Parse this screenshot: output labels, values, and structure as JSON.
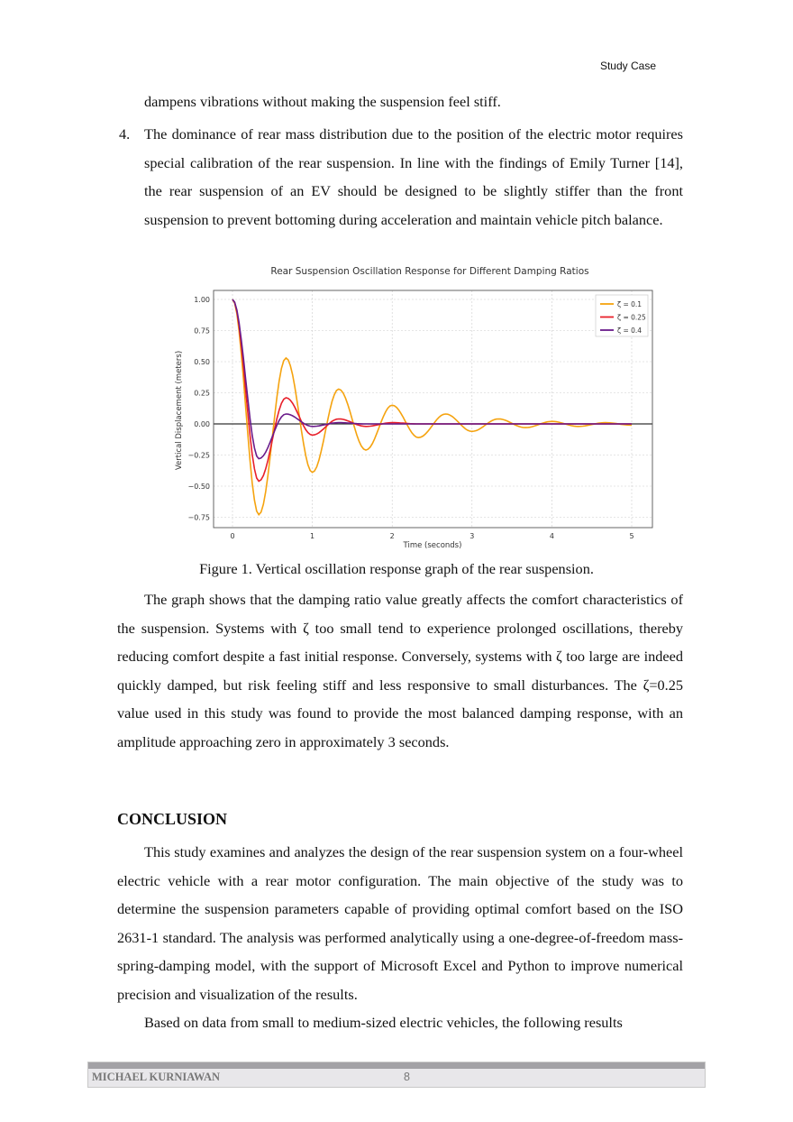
{
  "header": {
    "running_title": "Study Case"
  },
  "body": {
    "para_continued": "dampens vibrations without making the suspension feel stiff.",
    "list_item_4": {
      "number": "4.",
      "text": "The dominance of rear mass distribution due to the position of the electric motor requires special calibration of the rear suspension. In line with the findings of Emily Turner [14], the rear suspension of an EV should be designed to be slightly stiffer than the front suspension to prevent bottoming during acceleration and maintain vehicle pitch balance."
    },
    "figure_caption": "Figure 1. Vertical oscillation response graph of the rear suspension.",
    "para_graph_discussion": "The graph shows that the damping ratio value greatly affects the comfort characteristics of the suspension. Systems with ζ too small tend to experience prolonged oscillations, thereby reducing comfort despite a fast initial response. Conversely, systems with ζ too large are indeed quickly damped, but risk feeling stiff and less responsive to small disturbances. The ζ=0.25 value used in this study was found to provide the most balanced damping response, with an amplitude approaching zero in approximately 3 seconds.",
    "conclusion_heading": "CONCLUSION",
    "conclusion_para_1": "This study examines and analyzes the design of the rear suspension system on a four-wheel electric vehicle with a rear motor configuration. The main objective of the study was to determine the suspension parameters capable of providing optimal comfort based on the ISO 2631-1 standard. The analysis was performed analytically using a one-degree-of-freedom mass-spring-damping model, with the support of Microsoft Excel and Python to improve numerical precision and visualization of the results.",
    "conclusion_para_2": "Based on data from small to medium-sized electric vehicles, the following results"
  },
  "footer": {
    "author": "MICHAEL KURNIAWAN",
    "page_number": "8"
  },
  "chart_data": {
    "type": "line",
    "title": "Rear Suspension Oscillation Response for Different Damping Ratios",
    "xlabel": "Time (seconds)",
    "ylabel": "Vertical Displacement (meters)",
    "xlim": [
      -0.25,
      5.25
    ],
    "ylim": [
      -0.82,
      1.08
    ],
    "xticks": [
      "0",
      "1",
      "2",
      "3",
      "4",
      "5"
    ],
    "yticks": [
      "1.00",
      "0.75",
      "0.50",
      "0.25",
      "0.00",
      "−0.25",
      "−0.50",
      "−0.75"
    ],
    "grid": true,
    "legend_position": "top-right",
    "zero_line": true,
    "x": [
      0,
      0.33,
      0.67,
      1.0,
      1.33,
      1.67,
      2.0,
      2.33,
      2.67,
      3.0,
      3.33,
      3.67,
      4.0,
      4.33,
      4.67,
      5.0
    ],
    "series": [
      {
        "name": "ζ = 0.1",
        "color": "#f5a30f",
        "values": [
          1.0,
          -0.73,
          0.53,
          -0.39,
          0.28,
          -0.21,
          0.15,
          -0.11,
          0.08,
          -0.06,
          0.04,
          -0.03,
          0.02,
          -0.02,
          0.01,
          -0.01
        ]
      },
      {
        "name": "ζ = 0.25",
        "color": "#e8202a",
        "values": [
          1.0,
          -0.46,
          0.21,
          -0.09,
          0.04,
          -0.02,
          0.01,
          0.0,
          0.0,
          0.0,
          0.0,
          0.0,
          0.0,
          0.0,
          0.0,
          0.0
        ]
      },
      {
        "name": "ζ = 0.4",
        "color": "#6a1b8a",
        "values": [
          1.0,
          -0.28,
          0.08,
          -0.02,
          0.01,
          0.0,
          0.0,
          0.0,
          0.0,
          0.0,
          0.0,
          0.0,
          0.0,
          0.0,
          0.0,
          0.0
        ]
      }
    ]
  }
}
